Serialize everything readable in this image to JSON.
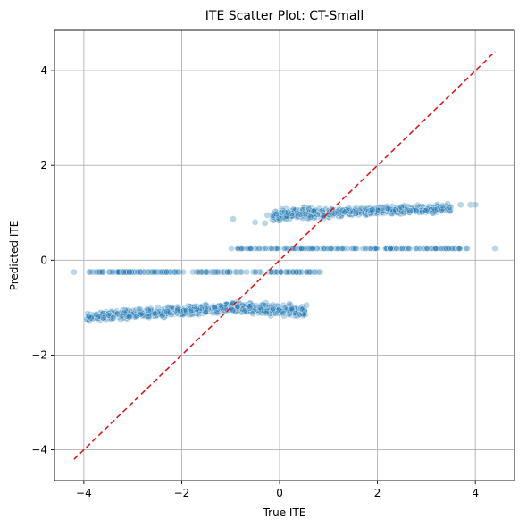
{
  "chart_data": {
    "type": "scatter",
    "title": "ITE Scatter Plot: CT-Small",
    "xlabel": "True ITE",
    "ylabel": "Predicted ITE",
    "xlim": [
      -4.6,
      4.8
    ],
    "ylim": [
      -4.65,
      4.85
    ],
    "xticks": [
      -4,
      -2,
      0,
      2,
      4
    ],
    "yticks": [
      -4,
      -2,
      0,
      2,
      4
    ],
    "grid": true,
    "colors": {
      "points": "#1f77b4",
      "diagonal": "#e31a1c",
      "grid": "#b0b0b0"
    },
    "series": [
      {
        "clusters": [
          {
            "shape": "band",
            "x_range": [
              -3.95,
              -1.0
            ],
            "y_center_left": -1.2,
            "y_center_right": -1.0,
            "spread": 0.09,
            "count": 520
          },
          {
            "shape": "band",
            "x_range": [
              -1.0,
              0.55
            ],
            "y_center_left": -1.0,
            "y_center_right": -1.1,
            "spread": 0.12,
            "count": 240
          },
          {
            "shape": "line",
            "x_range": [
              -3.9,
              0.85
            ],
            "y": -0.25,
            "count": 160
          },
          {
            "shape": "line",
            "x_range": [
              -1.0,
              3.85
            ],
            "y": 0.25,
            "count": 160
          },
          {
            "shape": "band",
            "x_range": [
              -0.15,
              1.1
            ],
            "y_center_left": 0.95,
            "y_center_right": 1.0,
            "spread": 0.12,
            "count": 200
          },
          {
            "shape": "band",
            "x_range": [
              1.0,
              3.5
            ],
            "y_center_left": 1.0,
            "y_center_right": 1.1,
            "spread": 0.08,
            "count": 520
          }
        ],
        "outliers": [
          {
            "x": -4.2,
            "y": -0.25
          },
          {
            "x": 4.4,
            "y": 0.25
          },
          {
            "x": -0.95,
            "y": 0.87
          },
          {
            "x": -0.5,
            "y": 0.8
          },
          {
            "x": -0.3,
            "y": 0.78
          },
          {
            "x": -0.25,
            "y": 0.95
          },
          {
            "x": 3.9,
            "y": 1.17
          },
          {
            "x": 4.0,
            "y": 1.17
          },
          {
            "x": 3.7,
            "y": 1.17
          },
          {
            "x": -3.85,
            "y": -1.22
          },
          {
            "x": -3.6,
            "y": -1.22
          },
          {
            "x": -3.4,
            "y": -1.22
          },
          {
            "x": 0.55,
            "y": -0.95
          },
          {
            "x": 0.5,
            "y": -1.15
          },
          {
            "x": 0.4,
            "y": -1.15
          },
          {
            "x": 0.2,
            "y": -0.92
          },
          {
            "x": 0.1,
            "y": 0.25
          },
          {
            "x": 0.45,
            "y": 0.25
          }
        ]
      }
    ],
    "diagonal": {
      "from": [
        -4.2,
        -4.2
      ],
      "to": [
        4.4,
        4.4
      ],
      "style": "dashed"
    }
  }
}
